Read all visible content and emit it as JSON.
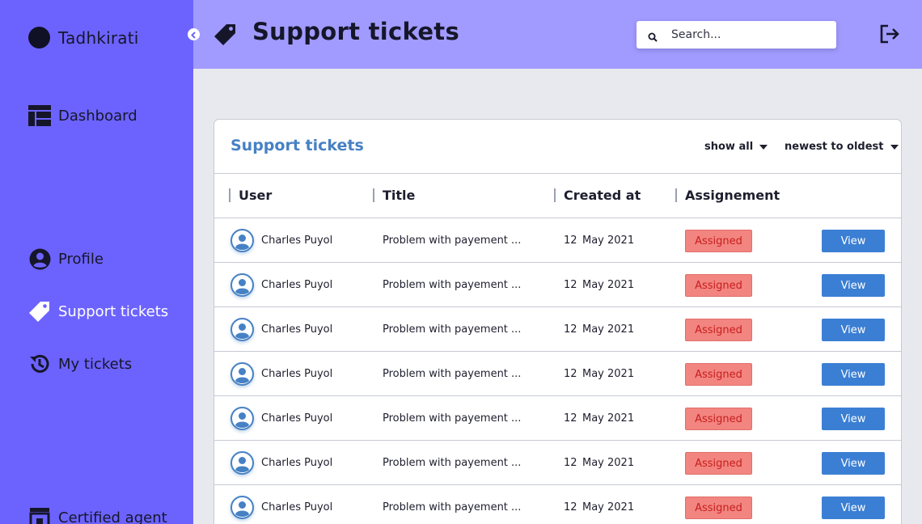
{
  "brand": {
    "name": "Tadhkirati"
  },
  "sidebar": {
    "items": [
      {
        "label": "Dashboard",
        "icon": "dashboard-icon"
      },
      {
        "label": "Profile",
        "icon": "user-circle-icon"
      },
      {
        "label": "Support tickets",
        "icon": "tag-icon",
        "active": true
      },
      {
        "label": "My tickets",
        "icon": "history-icon"
      },
      {
        "label": "Certified agent",
        "icon": "store-icon"
      }
    ]
  },
  "header": {
    "title": "Support tickets",
    "search_placeholder": "Search..."
  },
  "card": {
    "title": "Support tickets",
    "filter_label": "show all",
    "sort_label": "newest to oldest"
  },
  "table": {
    "columns": [
      "User",
      "Title",
      "Created at",
      "Assignement"
    ],
    "rows": [
      {
        "user": "Charles Puyol",
        "title": "Problem with payement ...",
        "day": "12",
        "month_year": "May 2021",
        "status": "Assigned",
        "action": "View"
      },
      {
        "user": "Charles Puyol",
        "title": "Problem with payement ...",
        "day": "12",
        "month_year": "May 2021",
        "status": "Assigned",
        "action": "View"
      },
      {
        "user": "Charles Puyol",
        "title": "Problem with payement ...",
        "day": "12",
        "month_year": "May 2021",
        "status": "Assigned",
        "action": "View"
      },
      {
        "user": "Charles Puyol",
        "title": "Problem with payement ...",
        "day": "12",
        "month_year": "May 2021",
        "status": "Assigned",
        "action": "View"
      },
      {
        "user": "Charles Puyol",
        "title": "Problem with payement ...",
        "day": "12",
        "month_year": "May 2021",
        "status": "Assigned",
        "action": "View"
      },
      {
        "user": "Charles Puyol",
        "title": "Problem with payement ...",
        "day": "12",
        "month_year": "May 2021",
        "status": "Assigned",
        "action": "View"
      },
      {
        "user": "Charles Puyol",
        "title": "Problem with payement ...",
        "day": "12",
        "month_year": "May 2021",
        "status": "Assigned",
        "action": "View"
      }
    ]
  },
  "colors": {
    "sidebar_bg": "#6c63ff",
    "header_bg": "#a19bff",
    "accent_blue": "#4681c4",
    "button_blue": "#3b7fd4",
    "badge_red": "#f28580",
    "badge_text": "#c81e1e"
  }
}
